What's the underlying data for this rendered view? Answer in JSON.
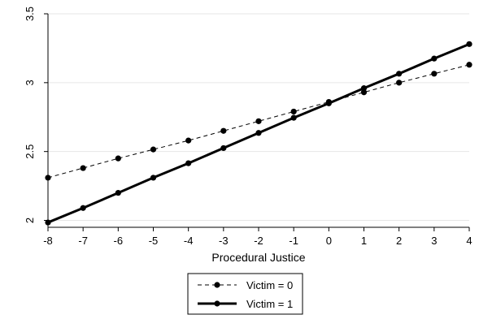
{
  "chart_data": {
    "type": "line",
    "title": "",
    "xlabel": "Procedural Justice",
    "ylabel": "",
    "x": [
      -8,
      -7,
      -6,
      -5,
      -4,
      -3,
      -2,
      -1,
      0,
      1,
      2,
      3,
      4
    ],
    "xlim": [
      -8,
      4
    ],
    "ylim": [
      1.95,
      3.5
    ],
    "xticks": [
      -8,
      -7,
      -6,
      -5,
      -4,
      -3,
      -2,
      -1,
      0,
      1,
      2,
      3,
      4
    ],
    "yticks": [
      2,
      2.5,
      3,
      3.5
    ],
    "ytick_labels": [
      "2",
      "2.5",
      "3",
      "3.5"
    ],
    "grid": "horizontal",
    "legend_position": "bottom",
    "series": [
      {
        "name": "Victim = 0",
        "line_style": "dashed",
        "color": "#000000",
        "values": [
          2.31,
          2.38,
          2.45,
          2.515,
          2.58,
          2.65,
          2.72,
          2.79,
          2.86,
          2.93,
          3.0,
          3.065,
          3.13
        ]
      },
      {
        "name": "Victim = 1",
        "line_style": "solid",
        "color": "#000000",
        "values": [
          1.985,
          2.09,
          2.2,
          2.31,
          2.415,
          2.525,
          2.635,
          2.745,
          2.85,
          2.96,
          3.065,
          3.175,
          3.28
        ]
      }
    ]
  }
}
